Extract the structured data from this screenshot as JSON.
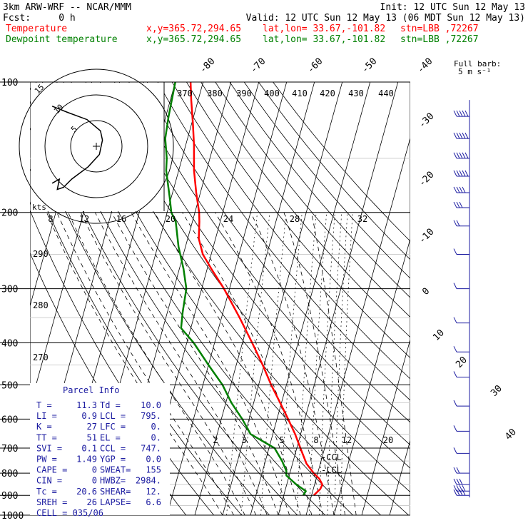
{
  "header": {
    "model": "3km ARW-WRF -- NCAR/MMM",
    "init": "Init: 12 UTC Sun 12 May 13",
    "fcst": "Fcst:     0 h",
    "valid": "Valid: 12 UTC Sun 12 May 13 (06 MDT Sun 12 May 13)",
    "temp_label": "Temperature",
    "dew_label": "Dewpoint temperature",
    "xy": "x,y=365.72,294.65",
    "latlon": "lat,lon= 33.67,-101.82",
    "stn": "stn=LBB ,72267"
  },
  "colors": {
    "temperature": "#ff0000",
    "dewpoint": "#008000",
    "grid": "#000000",
    "wind": "#1a1aa0",
    "info": "#1a1aa0"
  },
  "barb_note": {
    "title": "Full barb:",
    "value": "5 m s⁻¹"
  },
  "chart_data": {
    "type": "line",
    "title": "",
    "diagram": "skew-T log-p",
    "y_axis": {
      "scale": "log",
      "ticks": [
        "100",
        "200",
        "300",
        "400",
        "500",
        "600",
        "700",
        "800",
        "900",
        "1000"
      ],
      "range": [
        1000,
        100
      ]
    },
    "isotherm_labels": [
      "-80",
      "-70",
      "-60",
      "-50",
      "-40",
      "-30",
      "-20",
      "-10",
      "0",
      "10",
      "20",
      "30",
      "40"
    ],
    "theta_labels": [
      "370",
      "380",
      "390",
      "400",
      "410",
      "420",
      "430",
      "440"
    ],
    "theta_side_labels": [
      "290",
      "280",
      "270"
    ],
    "mixing_ratio_labels_upper": [
      "8",
      "12",
      "16",
      "20",
      "24",
      "28",
      "32"
    ],
    "mixing_ratio_labels_lower": [
      "2",
      "3",
      "5",
      "8",
      "12",
      "20"
    ],
    "level_marks": [
      "-CCL",
      "-LCL"
    ],
    "hodograph": {
      "units": "kts",
      "ring_labels": [
        "5",
        "10",
        "15"
      ],
      "path": [
        [
          -4.3,
          -3.6
        ],
        [
          -3.6,
          -3.2
        ],
        [
          -3.8,
          -4.2
        ],
        [
          -3.2,
          -4.0
        ],
        [
          -2.4,
          -3.2
        ],
        [
          -0.8,
          -2.0
        ],
        [
          0.3,
          -0.8
        ],
        [
          0.6,
          0.6
        ],
        [
          0.4,
          1.5
        ],
        [
          -0.9,
          2.6
        ],
        [
          -2.8,
          3.3
        ],
        [
          -4.3,
          3.9
        ]
      ]
    },
    "series": [
      {
        "name": "Temperature",
        "points": [
          {
            "p": 900,
            "t": 20.8
          },
          {
            "p": 870,
            "t": 22.5
          },
          {
            "p": 850,
            "t": 22.8
          },
          {
            "p": 825,
            "t": 21.2
          },
          {
            "p": 800,
            "t": 18.6
          },
          {
            "p": 760,
            "t": 15.0
          },
          {
            "p": 700,
            "t": 11.3
          },
          {
            "p": 650,
            "t": 8.0
          },
          {
            "p": 600,
            "t": 4.0
          },
          {
            "p": 550,
            "t": -0.5
          },
          {
            "p": 500,
            "t": -5.5
          },
          {
            "p": 450,
            "t": -10.5
          },
          {
            "p": 400,
            "t": -16.5
          },
          {
            "p": 350,
            "t": -23.5
          },
          {
            "p": 300,
            "t": -32.0
          },
          {
            "p": 270,
            "t": -38.5
          },
          {
            "p": 250,
            "t": -43.0
          },
          {
            "p": 230,
            "t": -46.0
          },
          {
            "p": 210,
            "t": -47.5
          },
          {
            "p": 200,
            "t": -48.5
          },
          {
            "p": 180,
            "t": -51.5
          },
          {
            "p": 160,
            "t": -54.5
          },
          {
            "p": 140,
            "t": -57.0
          },
          {
            "p": 125,
            "t": -59.5
          },
          {
            "p": 110,
            "t": -62.5
          },
          {
            "p": 100,
            "t": -64.5
          }
        ]
      },
      {
        "name": "Dewpoint temperature",
        "points": [
          {
            "p": 900,
            "t": 17.0
          },
          {
            "p": 880,
            "t": 17.5
          },
          {
            "p": 850,
            "t": 13.5
          },
          {
            "p": 810,
            "t": 9.0
          },
          {
            "p": 790,
            "t": 8.5
          },
          {
            "p": 750,
            "t": 6.0
          },
          {
            "p": 700,
            "t": 2.0
          },
          {
            "p": 650,
            "t": -8.0
          },
          {
            "p": 600,
            "t": -12.5
          },
          {
            "p": 550,
            "t": -18.0
          },
          {
            "p": 500,
            "t": -23.0
          },
          {
            "p": 450,
            "t": -30.0
          },
          {
            "p": 400,
            "t": -37.5
          },
          {
            "p": 370,
            "t": -43.5
          },
          {
            "p": 340,
            "t": -44.5
          },
          {
            "p": 300,
            "t": -45.5
          },
          {
            "p": 270,
            "t": -48.5
          },
          {
            "p": 240,
            "t": -52.5
          },
          {
            "p": 210,
            "t": -56.0
          },
          {
            "p": 200,
            "t": -58.5
          },
          {
            "p": 185,
            "t": -60.5
          },
          {
            "p": 160,
            "t": -64.5
          },
          {
            "p": 150,
            "t": -65.5
          },
          {
            "p": 135,
            "t": -68.0
          },
          {
            "p": 120,
            "t": -69.0
          },
          {
            "p": 100,
            "t": -70.0
          }
        ]
      }
    ],
    "wind_barbs": [
      {
        "p": 120,
        "spd": 25,
        "dir": 270
      },
      {
        "p": 135,
        "spd": 25,
        "dir": 270
      },
      {
        "p": 150,
        "spd": 25,
        "dir": 270
      },
      {
        "p": 165,
        "spd": 25,
        "dir": 270
      },
      {
        "p": 180,
        "spd": 20,
        "dir": 280
      },
      {
        "p": 195,
        "spd": 15,
        "dir": 280
      },
      {
        "p": 215,
        "spd": 10,
        "dir": 280
      },
      {
        "p": 250,
        "spd": 5,
        "dir": 290
      },
      {
        "p": 300,
        "spd": 5,
        "dir": 300
      },
      {
        "p": 360,
        "spd": 5,
        "dir": 290
      },
      {
        "p": 420,
        "spd": 5,
        "dir": 280
      },
      {
        "p": 480,
        "spd": 5,
        "dir": 270
      },
      {
        "p": 560,
        "spd": 5,
        "dir": 250
      },
      {
        "p": 640,
        "spd": 5,
        "dir": 240
      },
      {
        "p": 720,
        "spd": 5,
        "dir": 230
      },
      {
        "p": 800,
        "spd": 10,
        "dir": 200
      },
      {
        "p": 850,
        "spd": 15,
        "dir": 190
      },
      {
        "p": 880,
        "spd": 20,
        "dir": 180
      },
      {
        "p": 900,
        "spd": 20,
        "dir": 175
      }
    ]
  },
  "parcel_info": {
    "title": "Parcel Info",
    "rows": [
      [
        "T   =",
        "11.3",
        "Td =",
        "10.0"
      ],
      [
        "LI  =",
        "0.9",
        "LCL =",
        "795."
      ],
      [
        "K   =",
        "27",
        "LFC =",
        "0."
      ],
      [
        "TT  =",
        "51",
        "EL  =",
        "0."
      ],
      [
        "SVI =",
        "0.1",
        "CCL =",
        "747."
      ],
      [
        "PW  =",
        "1.49",
        "YGP =",
        "0.0"
      ],
      [
        "CAPE =",
        "0",
        "SWEAT=",
        "155"
      ],
      [
        "CIN =",
        "0",
        "HWBZ=",
        "2984."
      ],
      [
        "Tc  =",
        "20.6",
        "SHEAR=",
        "12."
      ],
      [
        "SREH =",
        "26",
        "LAPSE=",
        "6.6"
      ]
    ],
    "cell": "CELL = 035/06"
  }
}
